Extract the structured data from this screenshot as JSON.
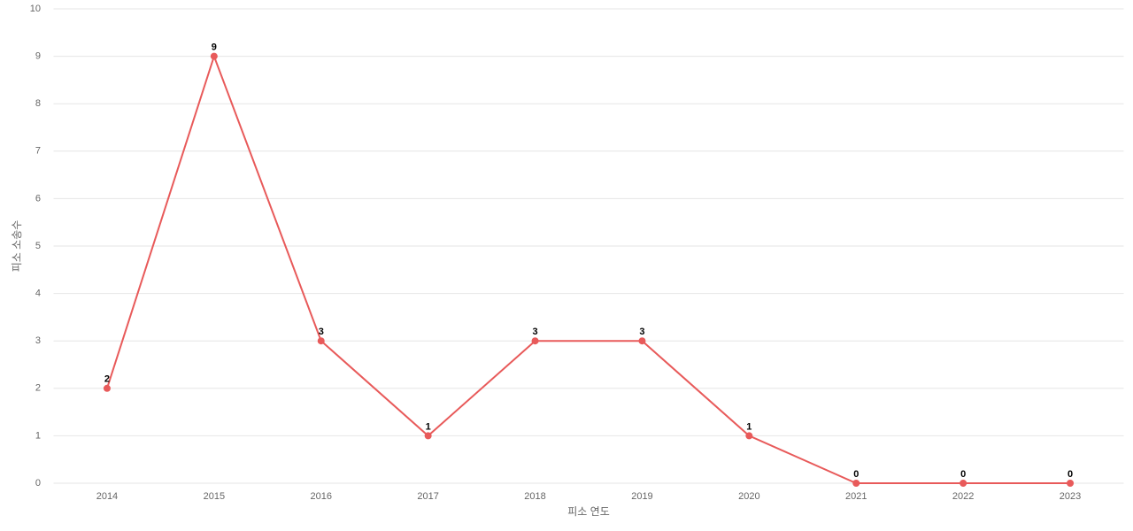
{
  "chart_data": {
    "type": "line",
    "x_label": "피소 연도",
    "y_label": "피소 소송수",
    "categories": [
      "2014",
      "2015",
      "2016",
      "2017",
      "2018",
      "2019",
      "2020",
      "2021",
      "2022",
      "2023"
    ],
    "series": [
      {
        "name": "피소 소송수",
        "color": "#e85a5a",
        "values": [
          2,
          9,
          3,
          1,
          3,
          3,
          1,
          0,
          0,
          0
        ]
      }
    ],
    "ylim": [
      0,
      10
    ],
    "yticks": [
      0,
      1,
      2,
      3,
      4,
      5,
      6,
      7,
      8,
      9,
      10
    ],
    "grid": true
  }
}
